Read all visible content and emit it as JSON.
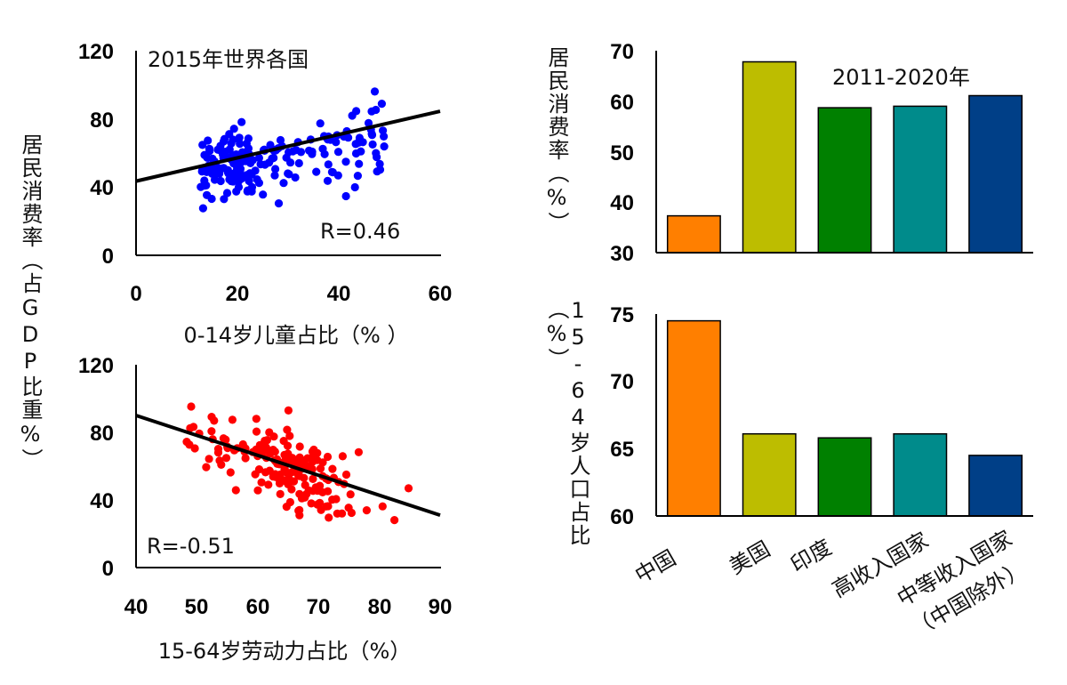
{
  "shared_ylabel": "居民消费率（占GDP比重%）",
  "chart_data": [
    {
      "type": "scatter",
      "title": "2015年世界各国",
      "xlabel": "0-14岁儿童占比（% ）",
      "ylabel": "居民消费率（占GDP比重%）",
      "xlim": [
        0,
        60
      ],
      "ylim": [
        0,
        120
      ],
      "xticks": [
        "0",
        "20",
        "40",
        "60"
      ],
      "yticks": [
        "0",
        "40",
        "80",
        "120"
      ],
      "annotation": "R=0.46",
      "color": "#0000ff",
      "trendline": {
        "x": [
          0,
          60
        ],
        "y": [
          43.5,
          84.5
        ]
      },
      "seed": 7,
      "n": 190,
      "cloud": {
        "xmin": 12,
        "xmax": 49,
        "slope": 0.6,
        "intercept": 48,
        "sd": 12
      }
    },
    {
      "type": "scatter",
      "xlabel": "15-64岁劳动力占比（%）",
      "ylabel": "居民消费率（占GDP比重%）",
      "xlim": [
        40,
        90
      ],
      "ylim": [
        0,
        120
      ],
      "xticks": [
        "40",
        "50",
        "60",
        "70",
        "80",
        "90"
      ],
      "yticks": [
        "0",
        "40",
        "80",
        "120"
      ],
      "annotation": "R=-0.51",
      "color": "#ff0000",
      "trendline": {
        "x": [
          40,
          90
        ],
        "y": [
          90,
          31
        ]
      },
      "seed": 13,
      "n": 190,
      "cloud": {
        "xmin": 48,
        "xmax": 85,
        "cx": 66,
        "cy": 58,
        "slope": -1.2,
        "sd": 12
      }
    },
    {
      "type": "bar",
      "title": "2011-2020年",
      "ylabel": "居民消费率（%）",
      "categories": [
        "中国",
        "美国",
        "印度",
        "高收入国家",
        "中等收入国家（中国除外）"
      ],
      "values": [
        37.3,
        67.8,
        58.7,
        59.0,
        61.1
      ],
      "colors": [
        "#ff7f00",
        "#bdbd00",
        "#008000",
        "#008b8b",
        "#003f87"
      ],
      "ylim": [
        30,
        70
      ],
      "yticks": [
        "30",
        "40",
        "50",
        "60",
        "70"
      ]
    },
    {
      "type": "bar",
      "ylabel": "15-64岁人口占比（%）",
      "categories": [
        "中国",
        "美国",
        "印度",
        "高收入国家",
        "中等收入国家（中国除外）"
      ],
      "values": [
        74.5,
        66.1,
        65.8,
        66.1,
        64.5
      ],
      "colors": [
        "#ff7f00",
        "#bdbd00",
        "#008000",
        "#008b8b",
        "#003f87"
      ],
      "ylim": [
        60,
        75
      ],
      "yticks": [
        "60",
        "65",
        "70",
        "75"
      ]
    }
  ],
  "category_labels": {
    "c0": "中国",
    "c1": "美国",
    "c2": "印度",
    "c3": "高收入国家",
    "c4_line1": "中等收入国家",
    "c4_line2": "（中国除外）"
  }
}
